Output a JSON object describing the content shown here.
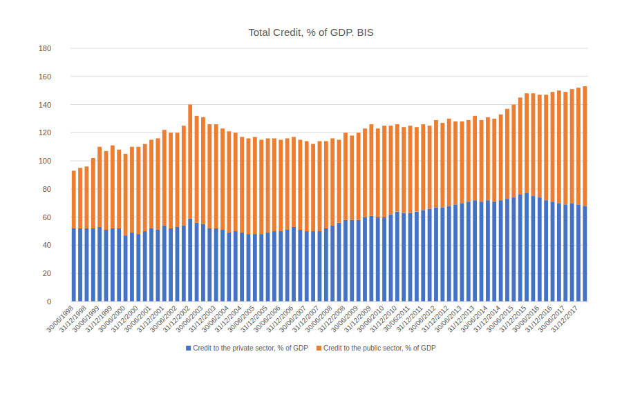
{
  "chart_data": {
    "type": "bar",
    "title": "Total Credit, % of GDP. BIS",
    "stacked": true,
    "grid": true,
    "legend": "bottom",
    "categories": [
      "30/06/1998",
      null,
      "31/12/1998",
      null,
      "30/06/1999",
      null,
      "31/12/1999",
      null,
      "30/06/2000",
      null,
      "31/12/2000",
      null,
      "30/06/2001",
      null,
      "31/12/2001",
      null,
      "30/06/2002",
      null,
      "31/12/2002",
      null,
      "30/06/2003",
      null,
      "31/12/2003",
      null,
      "30/06/2004",
      null,
      "31/12/2004",
      null,
      "30/06/2005",
      null,
      "31/12/2005",
      null,
      "30/06/2006",
      null,
      "31/12/2006",
      null,
      "30/06/2007",
      null,
      "31/12/2007",
      null,
      "30/06/2008",
      null,
      "31/12/2008",
      null,
      "30/06/2009",
      null,
      "31/12/2009",
      null,
      "30/06/2010",
      null,
      "31/12/2010",
      null,
      "30/06/2011",
      null,
      "31/12/2011",
      null,
      "30/06/2012",
      null,
      "31/12/2012",
      null,
      "30/06/2013",
      null,
      "31/12/2013",
      null,
      "30/06/2014",
      null,
      "31/12/2014",
      null,
      "30/06/2015",
      null,
      "31/12/2015",
      null,
      "30/06/2016",
      null,
      "31/12/2016",
      null,
      "30/06/2017",
      null,
      "31/12/2017",
      null
    ],
    "series": [
      {
        "name": "Credit to the private sector, % of GDP",
        "color": "#4472c4",
        "values": [
          52,
          52,
          52,
          52,
          53,
          51,
          52,
          52,
          47,
          49,
          48,
          50,
          52,
          51,
          54,
          52,
          53,
          54,
          59,
          56,
          55,
          52,
          52,
          51,
          49,
          50,
          49,
          48,
          48,
          48,
          49,
          50,
          50,
          51,
          53,
          51,
          50,
          50,
          50,
          52,
          54,
          56,
          58,
          58,
          58,
          60,
          61,
          60,
          60,
          62,
          64,
          63,
          63,
          64,
          65,
          66,
          67,
          67,
          68,
          69,
          70,
          71,
          72,
          71,
          72,
          71,
          72,
          73,
          74,
          76,
          77,
          75,
          74,
          72,
          71,
          70,
          69,
          70,
          69,
          68
        ]
      },
      {
        "name": "Credit to the public sector, % of GDP",
        "color": "#ed7d31",
        "values": [
          41,
          43,
          44,
          50,
          57,
          56,
          59,
          56,
          58,
          61,
          62,
          62,
          63,
          65,
          68,
          68,
          67,
          71,
          81,
          76,
          76,
          74,
          74,
          72,
          72,
          70,
          68,
          68,
          69,
          67,
          67,
          66,
          65,
          65,
          64,
          64,
          64,
          62,
          64,
          62,
          62,
          59,
          62,
          60,
          62,
          63,
          65,
          63,
          65,
          63,
          62,
          61,
          62,
          60,
          61,
          59,
          62,
          60,
          62,
          59,
          58,
          58,
          60,
          58,
          59,
          59,
          61,
          64,
          66,
          69,
          71,
          73,
          73,
          75,
          78,
          80,
          80,
          81,
          83,
          85
        ]
      }
    ],
    "ylim": [
      0,
      180
    ],
    "yticks": [
      0,
      20,
      40,
      60,
      80,
      100,
      120,
      140,
      160,
      180
    ]
  }
}
